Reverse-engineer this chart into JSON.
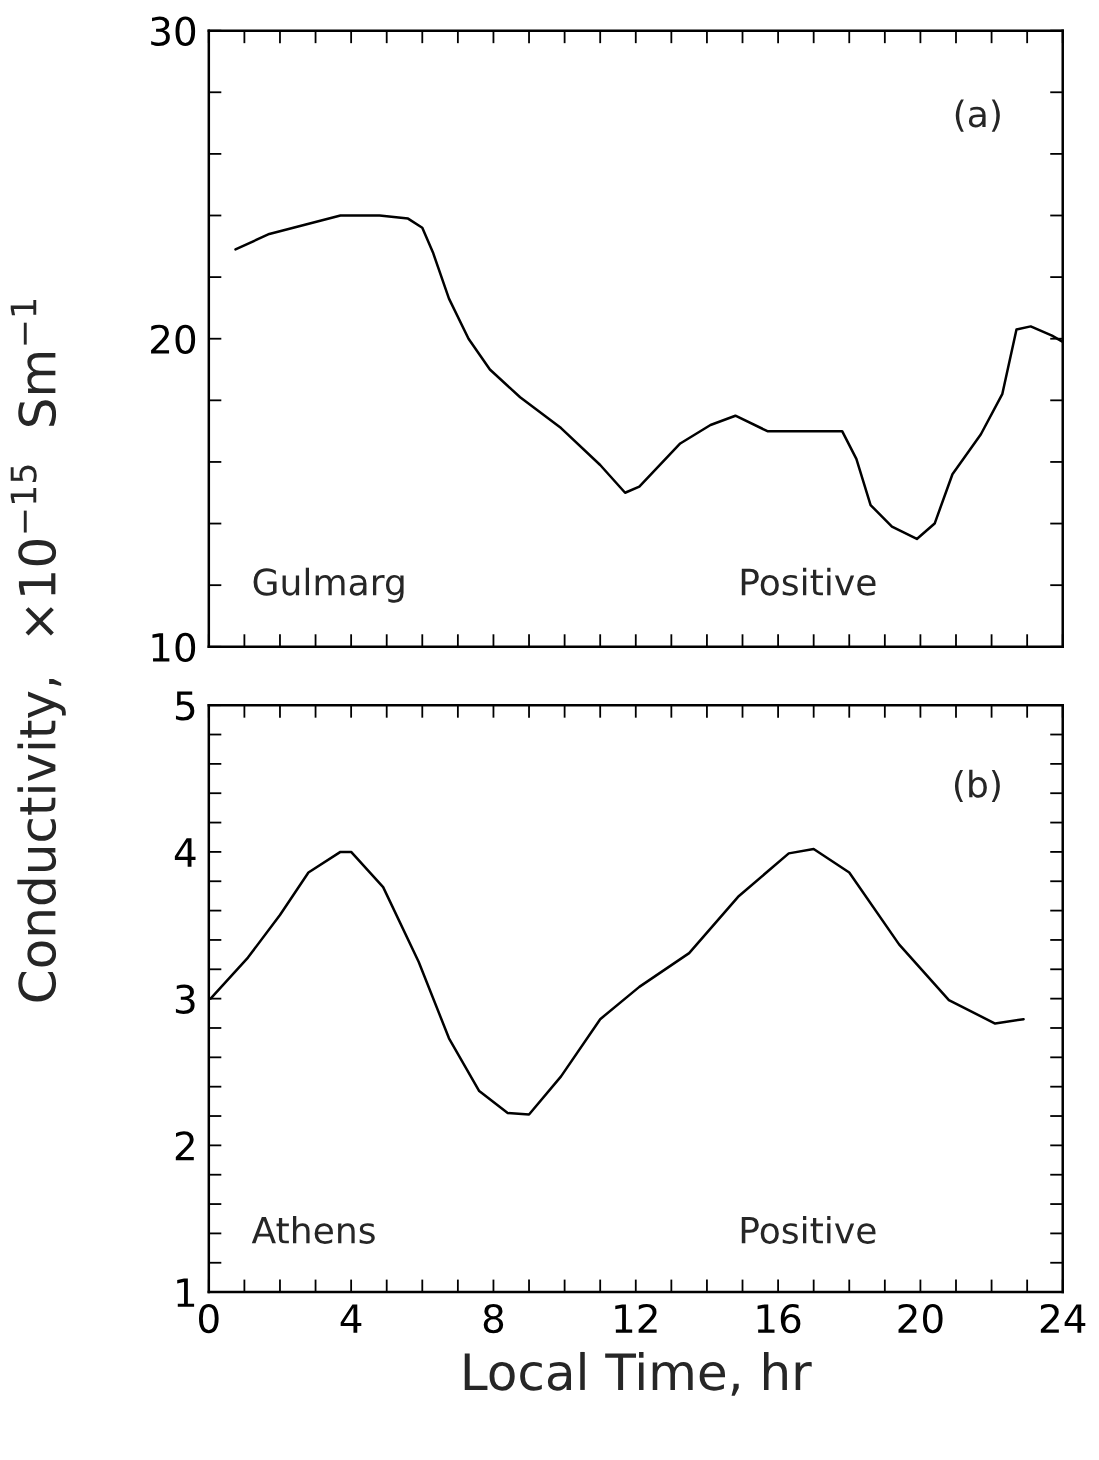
{
  "chart_data": [
    {
      "type": "line",
      "ylabel": "Conductivity,  ×10$^{−15}$  Sm$^{−1}$",
      "tick_labels": "y",
      "grid": false,
      "legend": false,
      "marker": "none",
      "line_style": "solid",
      "annotations": [
        "(a)",
        "Gulmarg",
        "Positive"
      ],
      "xlim": [
        0,
        24
      ],
      "ylim": [
        10,
        30
      ],
      "xticks": [
        {
          "value": 0,
          "label": null
        },
        {
          "value": 1,
          "label": null
        },
        {
          "value": 2,
          "label": null
        },
        {
          "value": 3,
          "label": null
        },
        {
          "value": 4,
          "label": null
        },
        {
          "value": 5,
          "label": null
        },
        {
          "value": 6,
          "label": null
        },
        {
          "value": 7,
          "label": null
        },
        {
          "value": 8,
          "label": null
        },
        {
          "value": 9,
          "label": null
        },
        {
          "value": 10,
          "label": null
        },
        {
          "value": 11,
          "label": null
        },
        {
          "value": 12,
          "label": null
        },
        {
          "value": 13,
          "label": null
        },
        {
          "value": 14,
          "label": null
        },
        {
          "value": 15,
          "label": null
        },
        {
          "value": 16,
          "label": null
        },
        {
          "value": 17,
          "label": null
        },
        {
          "value": 18,
          "label": null
        },
        {
          "value": 19,
          "label": null
        },
        {
          "value": 20,
          "label": null
        },
        {
          "value": 21,
          "label": null
        },
        {
          "value": 22,
          "label": null
        },
        {
          "value": 23,
          "label": null
        },
        {
          "value": 24,
          "label": null
        }
      ],
      "yticks": [
        10,
        {
          "value": 12,
          "label": null
        },
        {
          "value": 14,
          "label": null
        },
        {
          "value": 16,
          "label": null
        },
        {
          "value": 18,
          "label": null
        },
        20,
        {
          "value": 22,
          "label": null
        },
        {
          "value": 24,
          "label": null
        },
        {
          "value": 26,
          "label": null
        },
        {
          "value": 28,
          "label": null
        },
        30
      ],
      "series": [
        {
          "color": "#000000",
          "x": [
            0.75,
            1.7,
            2.7,
            3.7,
            4.8,
            5.6,
            6.0,
            6.3,
            6.75,
            7.3,
            7.9,
            8.75,
            9.9,
            11.0,
            11.7,
            12.1,
            13.25,
            14.1,
            14.8,
            15.7,
            16.6,
            17.8,
            18.2,
            18.6,
            19.2,
            19.9,
            20.4,
            20.9,
            21.7,
            22.3,
            22.7,
            23.1,
            23.7,
            24.0
          ],
          "values": [
            22.9,
            23.4,
            23.7,
            24.0,
            24.0,
            23.9,
            23.6,
            22.8,
            21.3,
            20.0,
            19.0,
            18.1,
            17.1,
            15.9,
            15.0,
            15.2,
            16.6,
            17.2,
            17.5,
            17.0,
            17.0,
            17.0,
            16.1,
            14.6,
            13.9,
            13.5,
            14.0,
            15.6,
            16.9,
            18.2,
            20.3,
            20.4,
            20.1,
            19.9
          ]
        }
      ]
    },
    {
      "type": "line",
      "xlabel": "Local Time, hr",
      "grid": false,
      "legend": false,
      "marker": "none",
      "line_style": "solid",
      "annotations": [
        "(b)",
        "Athens",
        "Positive"
      ],
      "xlim": [
        0,
        24
      ],
      "ylim": [
        1,
        5
      ],
      "xticks": [
        0,
        {
          "value": 1,
          "label": null
        },
        {
          "value": 2,
          "label": null
        },
        {
          "value": 3,
          "label": null
        },
        4,
        {
          "value": 5,
          "label": null
        },
        {
          "value": 6,
          "label": null
        },
        {
          "value": 7,
          "label": null
        },
        8,
        {
          "value": 9,
          "label": null
        },
        {
          "value": 10,
          "label": null
        },
        {
          "value": 11,
          "label": null
        },
        12,
        {
          "value": 13,
          "label": null
        },
        {
          "value": 14,
          "label": null
        },
        {
          "value": 15,
          "label": null
        },
        16,
        {
          "value": 17,
          "label": null
        },
        {
          "value": 18,
          "label": null
        },
        {
          "value": 19,
          "label": null
        },
        20,
        {
          "value": 21,
          "label": null
        },
        {
          "value": 22,
          "label": null
        },
        {
          "value": 23,
          "label": null
        },
        24
      ],
      "yticks": [
        1,
        {
          "value": 1.2,
          "label": null
        },
        {
          "value": 1.4,
          "label": null
        },
        {
          "value": 1.6,
          "label": null
        },
        {
          "value": 1.8,
          "label": null
        },
        2,
        {
          "value": 2.2,
          "label": null
        },
        {
          "value": 2.4,
          "label": null
        },
        {
          "value": 2.6,
          "label": null
        },
        {
          "value": 2.8,
          "label": null
        },
        3,
        {
          "value": 3.2,
          "label": null
        },
        {
          "value": 3.4,
          "label": null
        },
        {
          "value": 3.6,
          "label": null
        },
        {
          "value": 3.8,
          "label": null
        },
        4,
        {
          "value": 4.2,
          "label": null
        },
        {
          "value": 4.4,
          "label": null
        },
        {
          "value": 4.6,
          "label": null
        },
        {
          "value": 4.8,
          "label": null
        },
        5
      ],
      "series": [
        {
          "color": "#000000",
          "x": [
            0.05,
            1.1,
            2.0,
            2.8,
            3.7,
            4.0,
            4.9,
            5.9,
            6.75,
            7.6,
            8.4,
            9.0,
            9.9,
            11.0,
            12.1,
            13.5,
            14.9,
            16.3,
            17.0,
            18.0,
            19.4,
            20.8,
            22.1,
            22.9
          ],
          "values": [
            3.0,
            3.28,
            3.57,
            3.86,
            4.0,
            4.0,
            3.76,
            3.25,
            2.73,
            2.37,
            2.22,
            2.21,
            2.47,
            2.86,
            3.08,
            3.31,
            3.7,
            3.99,
            4.02,
            3.86,
            3.37,
            2.99,
            2.83,
            2.86
          ]
        }
      ]
    }
  ]
}
